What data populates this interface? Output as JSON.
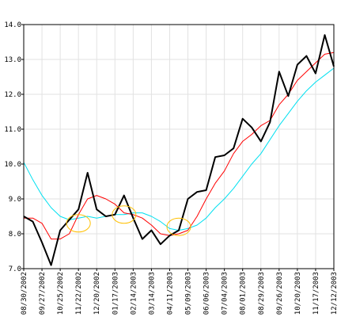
{
  "chart_data": {
    "type": "line",
    "title": "",
    "xlabel": "",
    "ylabel": "",
    "ylim": [
      7.0,
      14.0
    ],
    "yticks": [
      "7.0",
      "8.0",
      "9.0",
      "10.0",
      "11.0",
      "12.0",
      "13.0",
      "14.0"
    ],
    "grid": true,
    "x": [
      "08/30/2002",
      "09/13/2002",
      "09/27/2002",
      "10/11/2002",
      "10/25/2002",
      "11/08/2002",
      "11/22/2002",
      "12/06/2002",
      "12/20/2002",
      "01/03/2003",
      "01/17/2003",
      "01/31/2003",
      "02/14/2003",
      "02/28/2003",
      "03/14/2003",
      "03/28/2003",
      "04/11/2003",
      "04/25/2003",
      "05/09/2003",
      "05/23/2003",
      "06/06/2003",
      "06/20/2003",
      "07/04/2003",
      "07/18/2003",
      "08/01/2003",
      "08/15/2003",
      "08/29/2003",
      "09/12/2003",
      "09/26/2003",
      "10/10/2003",
      "10/20/2003",
      "11/03/2003",
      "11/17/2003",
      "12/01/2003",
      "12/12/2003"
    ],
    "xtick_labels": [
      "08/30/2002",
      "09/27/2002",
      "10/25/2002",
      "11/22/2002",
      "12/20/2002",
      "01/17/2003",
      "02/14/2003",
      "03/14/2003",
      "04/11/2003",
      "05/09/2003",
      "06/06/2003",
      "07/04/2003",
      "08/01/2003",
      "08/29/2003",
      "09/26/2003",
      "10/20/2003",
      "11/17/2003",
      "12/12/2003"
    ],
    "series": [
      {
        "color": "#000000",
        "values": [
          8.5,
          8.35,
          7.75,
          7.1,
          8.1,
          8.4,
          8.7,
          9.75,
          8.7,
          8.5,
          8.55,
          9.1,
          8.45,
          7.85,
          8.1,
          7.7,
          7.95,
          8.1,
          9.0,
          9.2,
          9.25,
          10.2,
          10.25,
          10.45,
          11.3,
          11.05,
          10.65,
          11.2,
          12.65,
          11.95,
          12.85,
          13.1,
          12.6,
          13.7,
          12.8
        ]
      },
      {
        "color": "#ff0000",
        "values": [
          8.45,
          8.45,
          8.3,
          7.85,
          7.85,
          8.0,
          8.55,
          9.0,
          9.1,
          9.0,
          8.85,
          8.6,
          8.55,
          8.45,
          8.25,
          8.0,
          7.95,
          8.0,
          8.1,
          8.5,
          9.0,
          9.45,
          9.8,
          10.3,
          10.65,
          10.85,
          11.1,
          11.25,
          11.7,
          12.0,
          12.4,
          12.65,
          12.9,
          13.15,
          13.2
        ]
      },
      {
        "color": "#00e0f0",
        "values": [
          10.05,
          9.55,
          9.1,
          8.75,
          8.5,
          8.4,
          8.45,
          8.5,
          8.45,
          8.5,
          8.55,
          8.55,
          8.6,
          8.6,
          8.5,
          8.35,
          8.15,
          8.1,
          8.15,
          8.25,
          8.45,
          8.75,
          9.0,
          9.3,
          9.65,
          10.0,
          10.3,
          10.7,
          11.1,
          11.45,
          11.8,
          12.1,
          12.35,
          12.55,
          12.75
        ]
      }
    ],
    "annotations": [
      {
        "shape": "ellipse",
        "color": "#ffc000",
        "x": "11/22/2002",
        "y": 8.3
      },
      {
        "shape": "ellipse",
        "color": "#ffc000",
        "x": "01/31/2003",
        "y": 8.55
      },
      {
        "shape": "ellipse",
        "color": "#ffc000",
        "x": "04/25/2003",
        "y": 8.2
      }
    ]
  }
}
